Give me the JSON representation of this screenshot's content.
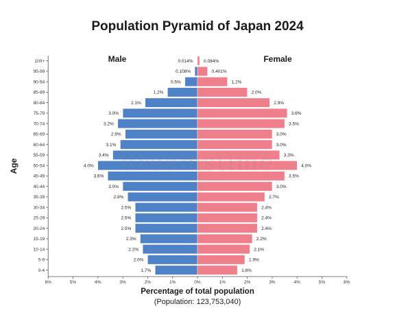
{
  "chart_data": {
    "type": "bar",
    "orientation": "horizontal-population-pyramid",
    "title": "Population Pyramid of Japan 2024",
    "xlabel": "Percentage of total population",
    "subtitle": "(Population: 123,753,040)",
    "ylabel": "Age",
    "xlim": [
      -6,
      6
    ],
    "xticks": [
      "6%",
      "5%",
      "4%",
      "3%",
      "2%",
      "1%",
      "0%",
      "1%",
      "2%",
      "3%",
      "4%",
      "5%",
      "6%"
    ],
    "categories": [
      "100+",
      "95-99",
      "90-94",
      "85-89",
      "80-84",
      "75-79",
      "70-74",
      "65-69",
      "60-64",
      "55-59",
      "50-54",
      "45-49",
      "40-44",
      "35-39",
      "30-34",
      "25-29",
      "20-24",
      "15-19",
      "10-14",
      "5-9",
      "0-4"
    ],
    "series": [
      {
        "name": "Male",
        "color": "#4f81c7",
        "values": [
          0.014,
          0.108,
          0.5,
          1.2,
          2.1,
          3.0,
          3.2,
          2.9,
          3.1,
          3.4,
          4.0,
          3.6,
          3.0,
          2.8,
          2.5,
          2.5,
          2.5,
          2.3,
          2.2,
          2.0,
          1.7
        ],
        "labels": [
          "0.014%",
          "0.108%",
          "0.5%",
          "1.2%",
          "2.1%",
          "3.0%",
          "3.2%",
          "2.9%",
          "3.1%",
          "3.4%",
          "4.0%",
          "3.6%",
          "3.0%",
          "2.8%",
          "2.5%",
          "2.5%",
          "2.5%",
          "2.3%",
          "2.2%",
          "2.0%",
          "1.7%"
        ]
      },
      {
        "name": "Female",
        "color": "#f07f8c",
        "values": [
          0.084,
          0.401,
          1.2,
          2.0,
          2.9,
          3.6,
          3.5,
          3.0,
          3.0,
          3.3,
          4.0,
          3.5,
          3.0,
          2.7,
          2.4,
          2.4,
          2.4,
          2.2,
          2.1,
          1.9,
          1.6
        ],
        "labels": [
          "0.084%",
          "0.401%",
          "1.2%",
          "2.0%",
          "2.9%",
          "3.6%",
          "3.5%",
          "3.0%",
          "3.0%",
          "3.3%",
          "4.0%",
          "3.5%",
          "3.0%",
          "2.7%",
          "2.4%",
          "2.4%",
          "2.4%",
          "2.2%",
          "2.1%",
          "1.9%",
          "1.6%"
        ]
      }
    ],
    "watermark": "dreamstime"
  }
}
